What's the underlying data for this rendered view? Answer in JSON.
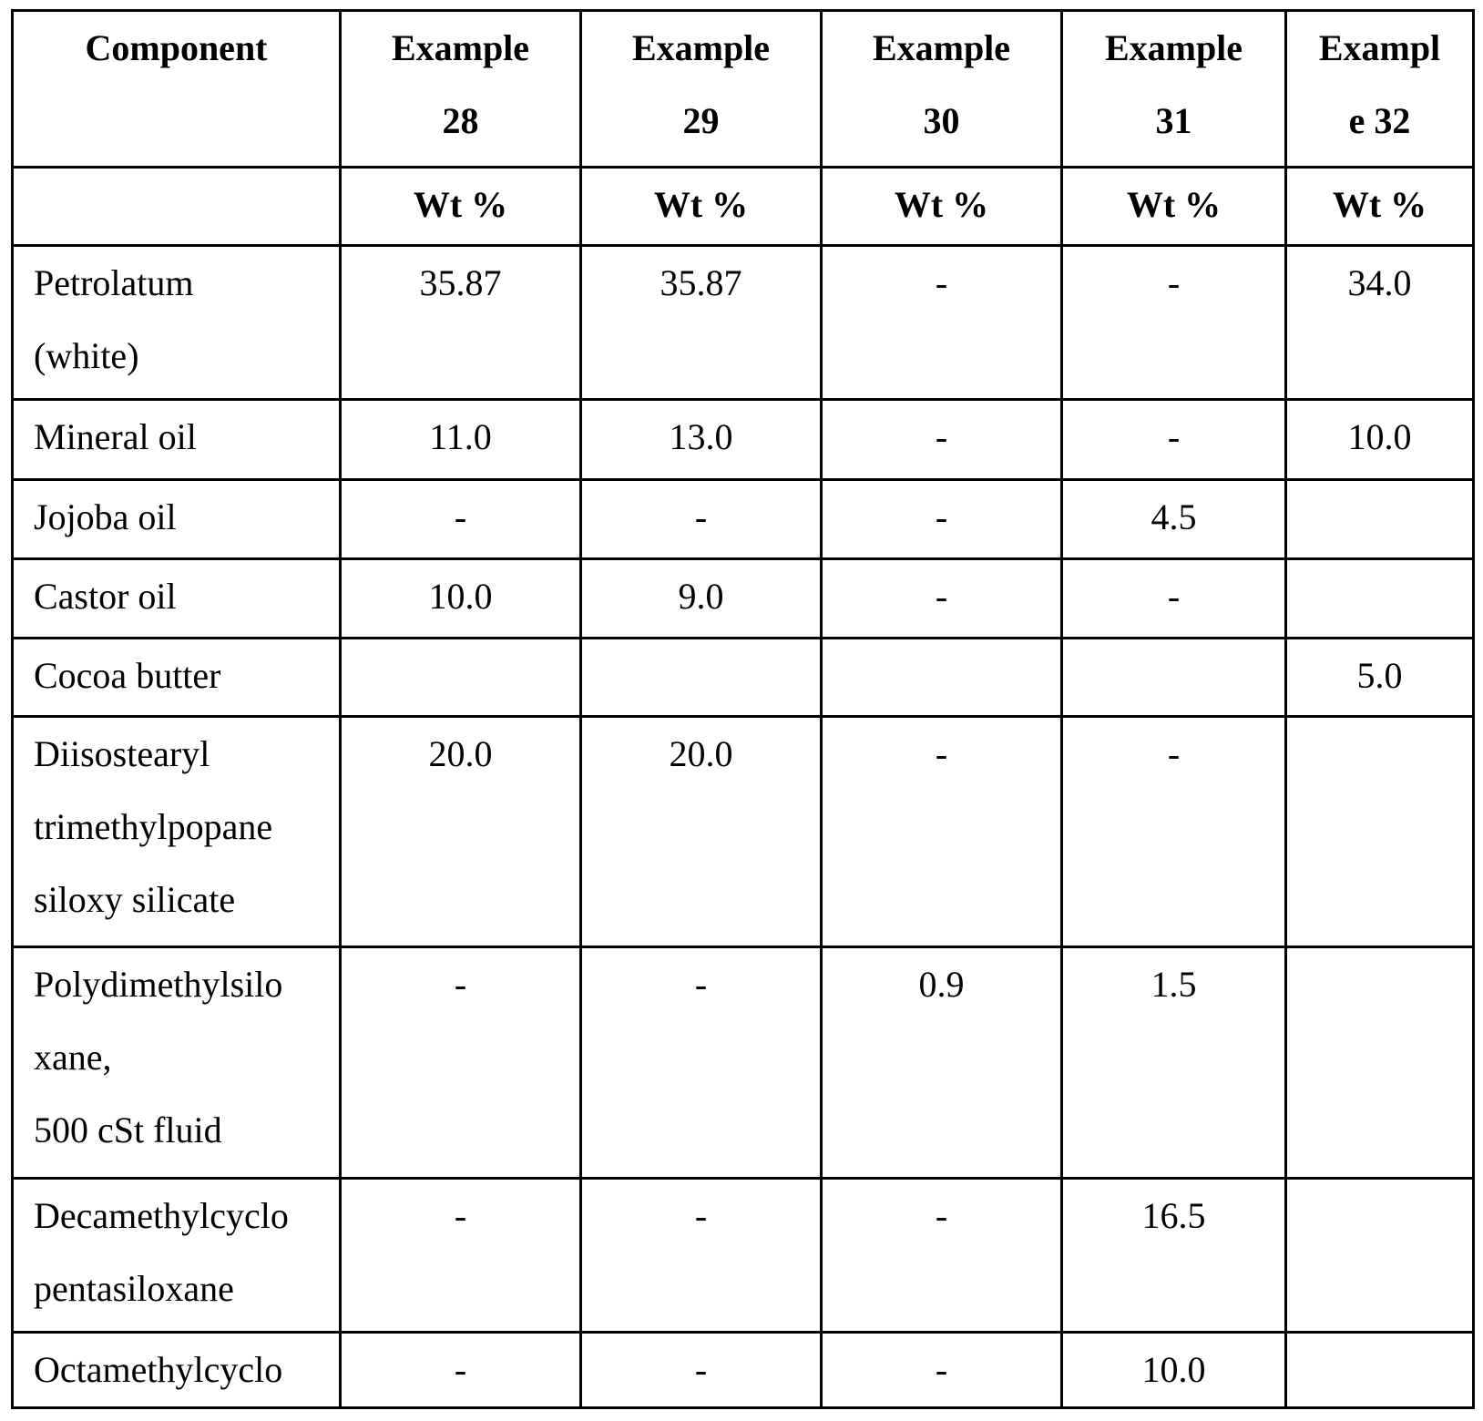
{
  "table": {
    "header": [
      [
        "Component"
      ],
      [
        "Example",
        "28"
      ],
      [
        "Example",
        "29"
      ],
      [
        "Example",
        "30"
      ],
      [
        "Example",
        "31"
      ],
      [
        "Exampl",
        "e 32"
      ]
    ],
    "units": [
      "Wt %",
      "Wt %",
      "Wt %",
      "Wt %",
      "Wt %"
    ],
    "rows": [
      {
        "component": [
          "Petrolatum",
          "(white)"
        ],
        "values": [
          "35.87",
          "35.87",
          "-",
          "-",
          "34.0"
        ]
      },
      {
        "component": [
          "Mineral oil"
        ],
        "values": [
          "11.0",
          "13.0",
          "-",
          "-",
          "10.0"
        ]
      },
      {
        "component": [
          "Jojoba oil"
        ],
        "values": [
          "-",
          "-",
          "-",
          "4.5",
          null
        ]
      },
      {
        "component": [
          "Castor oil"
        ],
        "values": [
          "10.0",
          "9.0",
          "-",
          "-",
          null
        ]
      },
      {
        "component": [
          "Cocoa butter"
        ],
        "values": [
          null,
          null,
          null,
          null,
          "5.0"
        ]
      },
      {
        "component": [
          "Diisostearyl",
          "trimethylpopane",
          "siloxy silicate"
        ],
        "values": [
          "20.0",
          "20.0",
          "-",
          "-",
          null
        ]
      },
      {
        "component": [
          "Polydimethylsilo",
          "xane,",
          "500 cSt fluid"
        ],
        "values": [
          "-",
          "-",
          "0.9",
          "1.5",
          null
        ]
      },
      {
        "component": [
          "Decamethylcyclo",
          "pentasiloxane"
        ],
        "values": [
          "-",
          "-",
          "-",
          "16.5",
          null
        ]
      },
      {
        "component": [
          "Octamethylcyclo"
        ],
        "values": [
          "-",
          "-",
          "-",
          "10.0",
          null
        ]
      }
    ]
  }
}
